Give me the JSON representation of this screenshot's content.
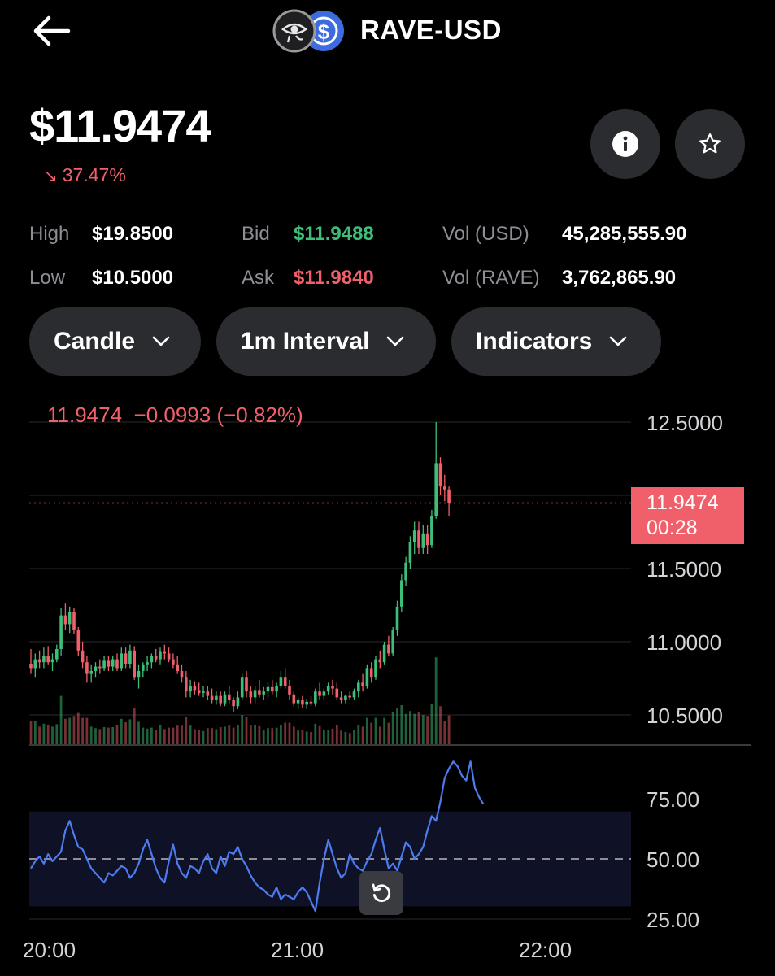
{
  "header": {
    "title": "RAVE-USD",
    "back_icon": "arrow-left-icon",
    "logo_icons": [
      "eye-of-horus-icon",
      "dollar-coin-icon"
    ]
  },
  "price": {
    "value": "$11.9474",
    "change": "37.47%",
    "direction": "down",
    "change_color": "#f0606a"
  },
  "actions": {
    "info_icon": "info-icon",
    "favorite_icon": "star-icon"
  },
  "stats": {
    "high_label": "High",
    "high_value": "$19.8500",
    "low_label": "Low",
    "low_value": "$10.5000",
    "bid_label": "Bid",
    "bid_value": "$11.9488",
    "ask_label": "Ask",
    "ask_value": "$11.9840",
    "vol_usd_label": "Vol (USD)",
    "vol_usd_value": "45,285,555.90",
    "vol_rave_label": "Vol (RAVE)",
    "vol_rave_value": "3,762,865.90"
  },
  "controls": {
    "chart_type": "Candle",
    "interval": "1m Interval",
    "indicators": "Indicators"
  },
  "legend": {
    "close": "11.9474",
    "change": "−0.0993",
    "change_pct": "(−0.82%)"
  },
  "price_tag": {
    "price": "11.9474",
    "countdown": "00:28"
  },
  "colors": {
    "up": "#3dbf7a",
    "down": "#f0606a",
    "rsi_line": "#4d7cf0",
    "background": "#000000"
  },
  "chart_data": [
    {
      "type": "candlestick",
      "title": "",
      "x_tick_labels": [
        "20:00",
        "21:00",
        "22:00"
      ],
      "y_tick_labels": [
        "12.5000",
        "11.5000",
        "11.0000",
        "10.5000"
      ],
      "ylim": [
        10.3,
        12.55
      ],
      "current_price": 11.9474,
      "grid": true,
      "candles": [
        {
          "o": 10.85,
          "h": 10.95,
          "l": 10.78,
          "c": 10.82
        },
        {
          "o": 10.82,
          "h": 10.92,
          "l": 10.76,
          "c": 10.88
        },
        {
          "o": 10.88,
          "h": 10.94,
          "l": 10.82,
          "c": 10.86
        },
        {
          "o": 10.86,
          "h": 10.96,
          "l": 10.82,
          "c": 10.9
        },
        {
          "o": 10.9,
          "h": 10.97,
          "l": 10.84,
          "c": 10.86
        },
        {
          "o": 10.86,
          "h": 10.92,
          "l": 10.8,
          "c": 10.88
        },
        {
          "o": 10.88,
          "h": 10.98,
          "l": 10.86,
          "c": 10.95
        },
        {
          "o": 10.95,
          "h": 11.23,
          "l": 10.9,
          "c": 11.18
        },
        {
          "o": 11.18,
          "h": 11.26,
          "l": 11.08,
          "c": 11.12
        },
        {
          "o": 11.12,
          "h": 11.24,
          "l": 11.06,
          "c": 11.2
        },
        {
          "o": 11.2,
          "h": 11.23,
          "l": 11.05,
          "c": 11.08
        },
        {
          "o": 11.08,
          "h": 11.1,
          "l": 10.9,
          "c": 10.94
        },
        {
          "o": 10.94,
          "h": 11.0,
          "l": 10.82,
          "c": 10.86
        },
        {
          "o": 10.86,
          "h": 10.9,
          "l": 10.72,
          "c": 10.78
        },
        {
          "o": 10.78,
          "h": 10.84,
          "l": 10.72,
          "c": 10.8
        },
        {
          "o": 10.8,
          "h": 10.86,
          "l": 10.76,
          "c": 10.83
        },
        {
          "o": 10.83,
          "h": 10.88,
          "l": 10.78,
          "c": 10.82
        },
        {
          "o": 10.82,
          "h": 10.9,
          "l": 10.8,
          "c": 10.87
        },
        {
          "o": 10.87,
          "h": 10.9,
          "l": 10.8,
          "c": 10.83
        },
        {
          "o": 10.83,
          "h": 10.9,
          "l": 10.8,
          "c": 10.88
        },
        {
          "o": 10.88,
          "h": 10.92,
          "l": 10.8,
          "c": 10.82
        },
        {
          "o": 10.82,
          "h": 10.96,
          "l": 10.8,
          "c": 10.92
        },
        {
          "o": 10.92,
          "h": 10.96,
          "l": 10.82,
          "c": 10.85
        },
        {
          "o": 10.85,
          "h": 10.98,
          "l": 10.82,
          "c": 10.94
        },
        {
          "o": 10.94,
          "h": 10.97,
          "l": 10.74,
          "c": 10.76
        },
        {
          "o": 10.76,
          "h": 10.84,
          "l": 10.68,
          "c": 10.8
        },
        {
          "o": 10.8,
          "h": 10.86,
          "l": 10.76,
          "c": 10.84
        },
        {
          "o": 10.84,
          "h": 10.9,
          "l": 10.8,
          "c": 10.86
        },
        {
          "o": 10.86,
          "h": 10.92,
          "l": 10.82,
          "c": 10.9
        },
        {
          "o": 10.9,
          "h": 10.95,
          "l": 10.86,
          "c": 10.88
        },
        {
          "o": 10.88,
          "h": 10.96,
          "l": 10.84,
          "c": 10.93
        },
        {
          "o": 10.93,
          "h": 10.98,
          "l": 10.88,
          "c": 10.92
        },
        {
          "o": 10.92,
          "h": 10.96,
          "l": 10.86,
          "c": 10.88
        },
        {
          "o": 10.88,
          "h": 10.92,
          "l": 10.82,
          "c": 10.84
        },
        {
          "o": 10.84,
          "h": 10.9,
          "l": 10.78,
          "c": 10.8
        },
        {
          "o": 10.8,
          "h": 10.84,
          "l": 10.72,
          "c": 10.76
        },
        {
          "o": 10.76,
          "h": 10.8,
          "l": 10.62,
          "c": 10.66
        },
        {
          "o": 10.66,
          "h": 10.74,
          "l": 10.62,
          "c": 10.7
        },
        {
          "o": 10.7,
          "h": 10.73,
          "l": 10.64,
          "c": 10.67
        },
        {
          "o": 10.67,
          "h": 10.72,
          "l": 10.63,
          "c": 10.65
        },
        {
          "o": 10.65,
          "h": 10.7,
          "l": 10.62,
          "c": 10.66
        },
        {
          "o": 10.66,
          "h": 10.7,
          "l": 10.6,
          "c": 10.63
        },
        {
          "o": 10.63,
          "h": 10.68,
          "l": 10.58,
          "c": 10.6
        },
        {
          "o": 10.6,
          "h": 10.66,
          "l": 10.57,
          "c": 10.63
        },
        {
          "o": 10.63,
          "h": 10.66,
          "l": 10.56,
          "c": 10.58
        },
        {
          "o": 10.58,
          "h": 10.66,
          "l": 10.56,
          "c": 10.64
        },
        {
          "o": 10.64,
          "h": 10.7,
          "l": 10.58,
          "c": 10.6
        },
        {
          "o": 10.6,
          "h": 10.62,
          "l": 10.52,
          "c": 10.56
        },
        {
          "o": 10.56,
          "h": 10.66,
          "l": 10.54,
          "c": 10.62
        },
        {
          "o": 10.62,
          "h": 10.78,
          "l": 10.6,
          "c": 10.76
        },
        {
          "o": 10.76,
          "h": 10.8,
          "l": 10.62,
          "c": 10.66
        },
        {
          "o": 10.66,
          "h": 10.7,
          "l": 10.58,
          "c": 10.62
        },
        {
          "o": 10.62,
          "h": 10.7,
          "l": 10.58,
          "c": 10.67
        },
        {
          "o": 10.67,
          "h": 10.74,
          "l": 10.62,
          "c": 10.64
        },
        {
          "o": 10.64,
          "h": 10.69,
          "l": 10.6,
          "c": 10.66
        },
        {
          "o": 10.66,
          "h": 10.72,
          "l": 10.62,
          "c": 10.69
        },
        {
          "o": 10.69,
          "h": 10.74,
          "l": 10.64,
          "c": 10.66
        },
        {
          "o": 10.66,
          "h": 10.72,
          "l": 10.62,
          "c": 10.7
        },
        {
          "o": 10.7,
          "h": 10.8,
          "l": 10.68,
          "c": 10.76
        },
        {
          "o": 10.76,
          "h": 10.82,
          "l": 10.68,
          "c": 10.7
        },
        {
          "o": 10.7,
          "h": 10.74,
          "l": 10.6,
          "c": 10.64
        },
        {
          "o": 10.64,
          "h": 10.66,
          "l": 10.56,
          "c": 10.58
        },
        {
          "o": 10.58,
          "h": 10.62,
          "l": 10.54,
          "c": 10.6
        },
        {
          "o": 10.6,
          "h": 10.63,
          "l": 10.55,
          "c": 10.57
        },
        {
          "o": 10.57,
          "h": 10.61,
          "l": 10.54,
          "c": 10.59
        },
        {
          "o": 10.59,
          "h": 10.63,
          "l": 10.56,
          "c": 10.58
        },
        {
          "o": 10.58,
          "h": 10.68,
          "l": 10.56,
          "c": 10.66
        },
        {
          "o": 10.66,
          "h": 10.72,
          "l": 10.6,
          "c": 10.63
        },
        {
          "o": 10.63,
          "h": 10.68,
          "l": 10.6,
          "c": 10.66
        },
        {
          "o": 10.66,
          "h": 10.72,
          "l": 10.64,
          "c": 10.7
        },
        {
          "o": 10.7,
          "h": 10.74,
          "l": 10.64,
          "c": 10.68
        },
        {
          "o": 10.68,
          "h": 10.72,
          "l": 10.6,
          "c": 10.62
        },
        {
          "o": 10.62,
          "h": 10.66,
          "l": 10.58,
          "c": 10.6
        },
        {
          "o": 10.6,
          "h": 10.64,
          "l": 10.58,
          "c": 10.63
        },
        {
          "o": 10.63,
          "h": 10.66,
          "l": 10.6,
          "c": 10.62
        },
        {
          "o": 10.62,
          "h": 10.68,
          "l": 10.6,
          "c": 10.66
        },
        {
          "o": 10.66,
          "h": 10.74,
          "l": 10.62,
          "c": 10.72
        },
        {
          "o": 10.72,
          "h": 10.78,
          "l": 10.66,
          "c": 10.7
        },
        {
          "o": 10.7,
          "h": 10.84,
          "l": 10.68,
          "c": 10.82
        },
        {
          "o": 10.82,
          "h": 10.86,
          "l": 10.72,
          "c": 10.76
        },
        {
          "o": 10.76,
          "h": 10.9,
          "l": 10.74,
          "c": 10.88
        },
        {
          "o": 10.88,
          "h": 10.94,
          "l": 10.82,
          "c": 10.86
        },
        {
          "o": 10.86,
          "h": 11.0,
          "l": 10.84,
          "c": 10.98
        },
        {
          "o": 10.98,
          "h": 11.04,
          "l": 10.9,
          "c": 10.92
        },
        {
          "o": 10.92,
          "h": 11.1,
          "l": 10.9,
          "c": 11.08
        },
        {
          "o": 11.08,
          "h": 11.28,
          "l": 11.04,
          "c": 11.24
        },
        {
          "o": 11.24,
          "h": 11.46,
          "l": 11.2,
          "c": 11.42
        },
        {
          "o": 11.42,
          "h": 11.58,
          "l": 11.38,
          "c": 11.54
        },
        {
          "o": 11.54,
          "h": 11.72,
          "l": 11.5,
          "c": 11.68
        },
        {
          "o": 11.68,
          "h": 11.82,
          "l": 11.6,
          "c": 11.76
        },
        {
          "o": 11.76,
          "h": 11.82,
          "l": 11.6,
          "c": 11.64
        },
        {
          "o": 11.64,
          "h": 11.8,
          "l": 11.6,
          "c": 11.74
        },
        {
          "o": 11.74,
          "h": 11.8,
          "l": 11.6,
          "c": 11.66
        },
        {
          "o": 11.66,
          "h": 11.9,
          "l": 11.64,
          "c": 11.86
        },
        {
          "o": 11.86,
          "h": 12.5,
          "l": 11.84,
          "c": 12.22
        },
        {
          "o": 12.22,
          "h": 12.26,
          "l": 12.0,
          "c": 12.06
        },
        {
          "o": 12.06,
          "h": 12.14,
          "l": 11.96,
          "c": 12.04
        },
        {
          "o": 12.04,
          "h": 12.06,
          "l": 11.86,
          "c": 11.95
        }
      ]
    },
    {
      "type": "line",
      "title": "",
      "y_tick_labels": [
        "75.00",
        "50.00",
        "25.00"
      ],
      "ylim": [
        22,
        94
      ],
      "band": [
        30,
        70
      ],
      "midline": 50,
      "series": [
        {
          "values": [
            46,
            49,
            51,
            48,
            52,
            49,
            51,
            53,
            62,
            66,
            60,
            55,
            54,
            50,
            46,
            44,
            42,
            40,
            44,
            43,
            45,
            47,
            46,
            42,
            44,
            48,
            54,
            58,
            52,
            46,
            42,
            40,
            49,
            56,
            48,
            44,
            42,
            47,
            46,
            44,
            49,
            52,
            46,
            44,
            51,
            47,
            53,
            52,
            55,
            50,
            47,
            43,
            40,
            38,
            37,
            35,
            34,
            38,
            33,
            35,
            34,
            33,
            36,
            38,
            36,
            32,
            28,
            40,
            50,
            58,
            52,
            46,
            42,
            44,
            52,
            48,
            46,
            45,
            49,
            52,
            58,
            63,
            54,
            46,
            48,
            45,
            51,
            57,
            55,
            50,
            52,
            55,
            62,
            68,
            66,
            74,
            84,
            88,
            91,
            89,
            85,
            83,
            91,
            80,
            76,
            73
          ]
        }
      ]
    }
  ]
}
